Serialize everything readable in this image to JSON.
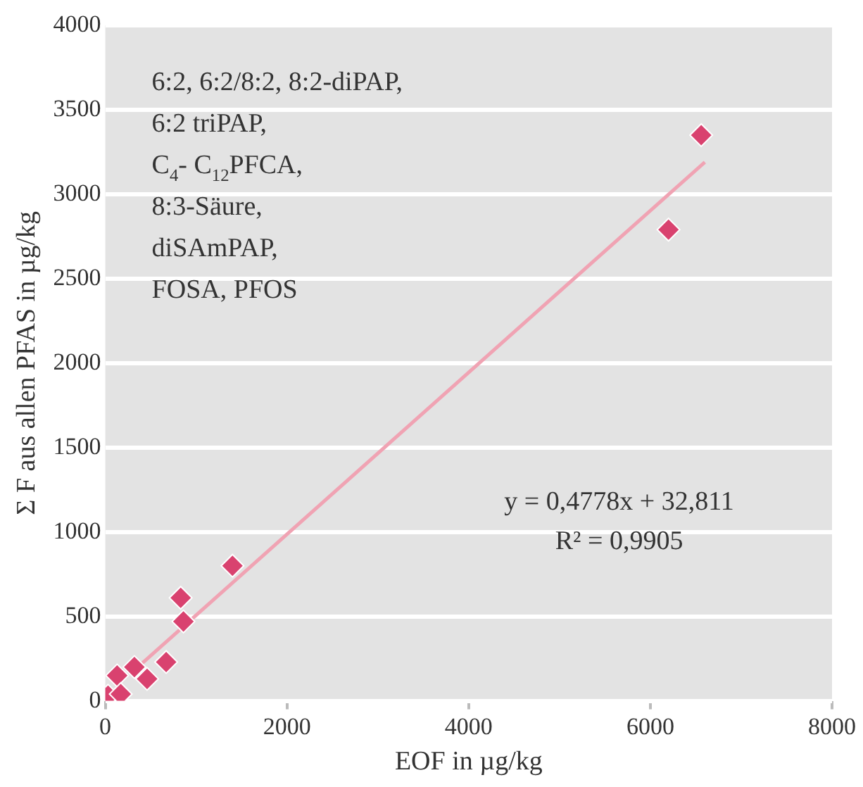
{
  "chart_data": {
    "type": "scatter",
    "xlabel": "EOF in µg/kg",
    "ylabel": "Σ F aus allen PFAS in µg/kg",
    "annotations": [
      "6:2, 6:2/8:2, 8:2-diPAP,\n6:2 triPAP,\nC$_{4}$- C$_{12}$PFCA,\n8:3-Säure,\ndiSAmPAP,\nFOSA, PFOS",
      "y = 0,4778x + 32,811\nR² = 0,9905"
    ],
    "series": [
      {
        "type": "scatter",
        "color": "#d9426f",
        "marker": "diamond",
        "x": [
          30,
          130,
          170,
          320,
          460,
          670,
          860,
          830,
          1400,
          6200,
          6560
        ],
        "values": [
          30,
          150,
          40,
          200,
          130,
          230,
          470,
          610,
          800,
          2790,
          3350
        ]
      },
      {
        "type": "line",
        "color": "#f0a3b3",
        "x": [
          400,
          6600
        ],
        "values": [
          220,
          3190
        ]
      }
    ],
    "grid": "y",
    "legend": false,
    "xlim": [
      0,
      8000
    ],
    "xticks": [
      0,
      2000,
      4000,
      6000,
      8000
    ],
    "ylim": [
      0,
      4000
    ],
    "yticks": [
      0,
      500,
      1000,
      1500,
      2000,
      2500,
      3000,
      3500,
      4000
    ]
  }
}
